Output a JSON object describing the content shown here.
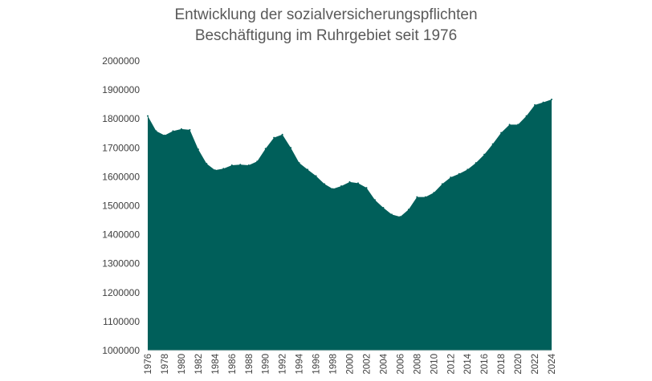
{
  "chart_data": {
    "type": "area",
    "title": [
      "Entwicklung der sozialversicherungspflichten",
      "Beschäftigung im Ruhrgebiet seit 1976"
    ],
    "xlabel": "",
    "ylabel": "",
    "ylim": [
      1000000,
      2000000
    ],
    "yticks": [
      1000000,
      1100000,
      1200000,
      1300000,
      1400000,
      1500000,
      1600000,
      1700000,
      1800000,
      1900000,
      2000000
    ],
    "xticks": [
      1976,
      1978,
      1980,
      1982,
      1984,
      1986,
      1988,
      1990,
      1992,
      1994,
      1996,
      1998,
      2000,
      2002,
      2004,
      2006,
      2008,
      2010,
      2012,
      2014,
      2016,
      2018,
      2020,
      2022,
      2024
    ],
    "grid": false,
    "color": "#005f5a",
    "x": [
      1976,
      1977,
      1978,
      1979,
      1980,
      1981,
      1982,
      1983,
      1984,
      1985,
      1986,
      1987,
      1988,
      1989,
      1990,
      1991,
      1992,
      1993,
      1994,
      1995,
      1996,
      1997,
      1998,
      1999,
      2000,
      2001,
      2002,
      2003,
      2004,
      2005,
      2006,
      2007,
      2008,
      2009,
      2010,
      2011,
      2012,
      2013,
      2014,
      2015,
      2016,
      2017,
      2018,
      2019,
      2020,
      2021,
      2022,
      2023,
      2024
    ],
    "values": [
      1810000,
      1758000,
      1743000,
      1758000,
      1765000,
      1762000,
      1695000,
      1645000,
      1623000,
      1628000,
      1640000,
      1642000,
      1640000,
      1653000,
      1697000,
      1735000,
      1746000,
      1700000,
      1648000,
      1625000,
      1603000,
      1575000,
      1558000,
      1568000,
      1582000,
      1578000,
      1562000,
      1520000,
      1493000,
      1470000,
      1462000,
      1487000,
      1530000,
      1530000,
      1545000,
      1575000,
      1598000,
      1610000,
      1625000,
      1648000,
      1677000,
      1713000,
      1752000,
      1780000,
      1780000,
      1810000,
      1848000,
      1857000,
      1867000
    ]
  }
}
